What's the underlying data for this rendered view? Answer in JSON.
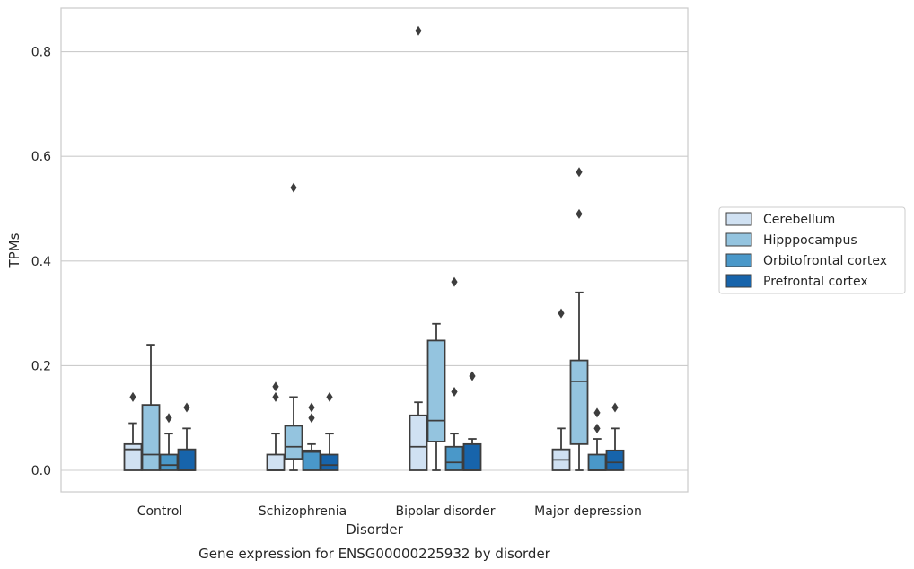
{
  "chart_data": {
    "type": "boxplot",
    "title": "",
    "caption": "Gene expression for ENSG00000225932 by disorder",
    "xlabel": "Disorder",
    "ylabel": "TPMs",
    "ylim": [
      -0.04,
      0.885
    ],
    "yticks": [
      0.0,
      0.2,
      0.4,
      0.6,
      0.8
    ],
    "ytick_labels": [
      "0.0",
      "0.2",
      "0.4",
      "0.6",
      "0.8"
    ],
    "grid": "horizontal",
    "legend_position": "right",
    "categories": [
      "Control",
      "Schizophrenia",
      "Bipolar disorder",
      "Major depression"
    ],
    "series": [
      {
        "name": "Cerebellum",
        "color": "#d0e1f2",
        "boxes": [
          {
            "whislo": 0.0,
            "q1": 0.0,
            "med": 0.04,
            "q3": 0.05,
            "whishi": 0.09,
            "fliers": [
              0.14
            ]
          },
          {
            "whislo": 0.0,
            "q1": 0.0,
            "med": 0.0,
            "q3": 0.03,
            "whishi": 0.07,
            "fliers": [
              0.14,
              0.16
            ]
          },
          {
            "whislo": 0.0,
            "q1": 0.0,
            "med": 0.045,
            "q3": 0.105,
            "whishi": 0.13,
            "fliers": [
              0.84
            ]
          },
          {
            "whislo": 0.0,
            "q1": 0.0,
            "med": 0.02,
            "q3": 0.04,
            "whishi": 0.08,
            "fliers": [
              0.3
            ]
          }
        ]
      },
      {
        "name": "Hipppocampus",
        "color": "#94c4df",
        "boxes": [
          {
            "whislo": 0.0,
            "q1": 0.0,
            "med": 0.03,
            "q3": 0.125,
            "whishi": 0.24,
            "fliers": []
          },
          {
            "whislo": 0.0,
            "q1": 0.022,
            "med": 0.045,
            "q3": 0.085,
            "whishi": 0.14,
            "fliers": [
              0.54
            ]
          },
          {
            "whislo": 0.0,
            "q1": 0.055,
            "med": 0.095,
            "q3": 0.248,
            "whishi": 0.28,
            "fliers": []
          },
          {
            "whislo": 0.0,
            "q1": 0.05,
            "med": 0.17,
            "q3": 0.21,
            "whishi": 0.34,
            "fliers": [
              0.49,
              0.57
            ]
          }
        ]
      },
      {
        "name": "Orbitofrontal cortex",
        "color": "#4a98c9",
        "boxes": [
          {
            "whislo": 0.0,
            "q1": 0.0,
            "med": 0.01,
            "q3": 0.03,
            "whishi": 0.07,
            "fliers": [
              0.1
            ]
          },
          {
            "whislo": 0.0,
            "q1": 0.0,
            "med": 0.035,
            "q3": 0.038,
            "whishi": 0.05,
            "fliers": [
              0.1,
              0.12
            ]
          },
          {
            "whislo": 0.0,
            "q1": 0.0,
            "med": 0.015,
            "q3": 0.045,
            "whishi": 0.07,
            "fliers": [
              0.15,
              0.36
            ]
          },
          {
            "whislo": 0.0,
            "q1": 0.0,
            "med": 0.0,
            "q3": 0.03,
            "whishi": 0.06,
            "fliers": [
              0.08,
              0.11
            ]
          }
        ]
      },
      {
        "name": "Prefrontal cortex",
        "color": "#1764ab",
        "boxes": [
          {
            "whislo": 0.0,
            "q1": 0.0,
            "med": 0.0,
            "q3": 0.04,
            "whishi": 0.08,
            "fliers": [
              0.12
            ]
          },
          {
            "whislo": 0.0,
            "q1": 0.0,
            "med": 0.01,
            "q3": 0.03,
            "whishi": 0.07,
            "fliers": [
              0.14
            ]
          },
          {
            "whislo": 0.0,
            "q1": 0.0,
            "med": 0.0,
            "q3": 0.05,
            "whishi": 0.06,
            "fliers": [
              0.18
            ]
          },
          {
            "whislo": 0.0,
            "q1": 0.0,
            "med": 0.015,
            "q3": 0.038,
            "whishi": 0.08,
            "fliers": [
              0.12
            ]
          }
        ]
      }
    ]
  }
}
